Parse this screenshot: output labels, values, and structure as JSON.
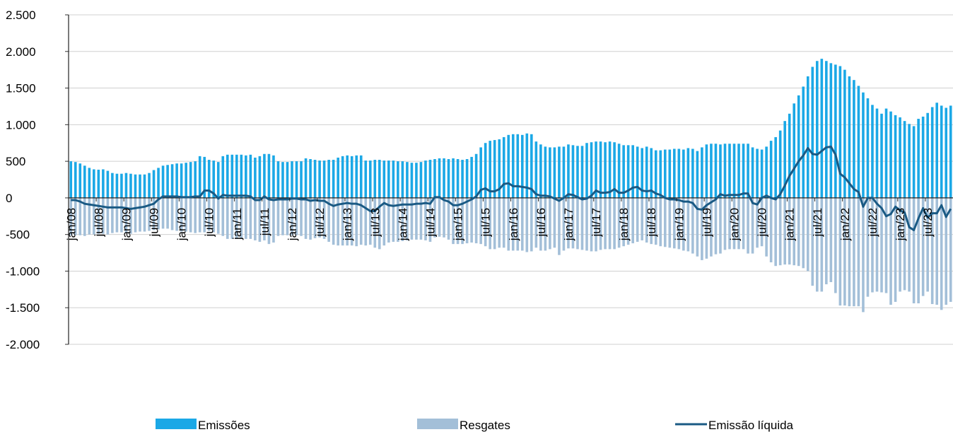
{
  "chart_data": {
    "type": "bar_line",
    "categories": [
      "jan/08",
      null,
      null,
      null,
      null,
      null,
      "jul/08",
      null,
      null,
      null,
      null,
      null,
      "jan/09",
      null,
      null,
      null,
      null,
      null,
      "jul/09",
      null,
      null,
      null,
      null,
      null,
      "jan/10",
      null,
      null,
      null,
      null,
      null,
      "jul/10",
      null,
      null,
      null,
      null,
      null,
      "jan/11",
      null,
      null,
      null,
      null,
      null,
      "jul/11",
      null,
      null,
      null,
      null,
      null,
      "jan/12",
      null,
      null,
      null,
      null,
      null,
      "jul/12",
      null,
      null,
      null,
      null,
      null,
      "jan/13",
      null,
      null,
      null,
      null,
      null,
      "jul/13",
      null,
      null,
      null,
      null,
      null,
      "jan/14",
      null,
      null,
      null,
      null,
      null,
      "jul/14",
      null,
      null,
      null,
      null,
      null,
      "jan/15",
      null,
      null,
      null,
      null,
      null,
      "jul/15",
      null,
      null,
      null,
      null,
      null,
      "jan/16",
      null,
      null,
      null,
      null,
      null,
      "jul/16",
      null,
      null,
      null,
      null,
      null,
      "jan/17",
      null,
      null,
      null,
      null,
      null,
      "jul/17",
      null,
      null,
      null,
      null,
      null,
      "jan/18",
      null,
      null,
      null,
      null,
      null,
      "jul/18",
      null,
      null,
      null,
      null,
      null,
      "jan/19",
      null,
      null,
      null,
      null,
      null,
      "jul/19",
      null,
      null,
      null,
      null,
      null,
      "jan/20",
      null,
      null,
      null,
      null,
      null,
      "jul/20",
      null,
      null,
      null,
      null,
      null,
      "jan/21",
      null,
      null,
      null,
      null,
      null,
      "jul/21",
      null,
      null,
      null,
      null,
      null,
      "jan/22",
      null,
      null,
      null,
      null,
      null,
      "jul/22",
      null,
      null,
      null,
      null,
      null,
      "jan/23",
      null,
      null,
      null,
      null,
      null,
      "jul/23",
      null,
      null,
      null,
      null,
      null
    ],
    "series": [
      {
        "name": "Emissões",
        "kind": "bar",
        "color": "#1ba8e6",
        "values": [
          500,
          490,
          470,
          440,
          410,
          390,
          385,
          390,
          370,
          340,
          330,
          330,
          340,
          330,
          320,
          320,
          320,
          340,
          380,
          410,
          440,
          450,
          460,
          470,
          470,
          480,
          490,
          500,
          570,
          560,
          520,
          510,
          490,
          570,
          590,
          590,
          590,
          590,
          580,
          590,
          550,
          570,
          600,
          600,
          580,
          500,
          490,
          490,
          500,
          500,
          500,
          540,
          530,
          520,
          510,
          510,
          520,
          520,
          550,
          570,
          580,
          570,
          580,
          580,
          510,
          510,
          520,
          520,
          510,
          510,
          510,
          500,
          500,
          490,
          480,
          480,
          490,
          510,
          520,
          530,
          540,
          540,
          530,
          540,
          530,
          520,
          530,
          560,
          600,
          690,
          750,
          780,
          790,
          800,
          830,
          860,
          870,
          870,
          860,
          880,
          870,
          770,
          730,
          700,
          690,
          690,
          700,
          700,
          730,
          720,
          710,
          710,
          750,
          760,
          770,
          770,
          760,
          770,
          760,
          740,
          720,
          720,
          720,
          700,
          680,
          700,
          680,
          650,
          650,
          660,
          660,
          670,
          670,
          660,
          680,
          670,
          640,
          690,
          730,
          740,
          740,
          730,
          740,
          740,
          740,
          740,
          740,
          740,
          690,
          670,
          660,
          700,
          780,
          830,
          920,
          1050,
          1150,
          1290,
          1400,
          1520,
          1660,
          1790,
          1870,
          1900,
          1870,
          1840,
          1820,
          1800,
          1750,
          1660,
          1610,
          1530,
          1440,
          1360,
          1270,
          1220,
          1150,
          1220,
          1180,
          1130,
          1100,
          1050,
          1010,
          980,
          1080,
          1110,
          1160,
          1240,
          1300,
          1260,
          1230,
          1260
        ]
      },
      {
        "name": "Resgates",
        "kind": "bar",
        "color": "#a3bfd8",
        "values": [
          -510,
          -510,
          -510,
          -520,
          -500,
          -500,
          -490,
          -490,
          -500,
          -480,
          -470,
          -470,
          -480,
          -490,
          -470,
          -460,
          -460,
          -450,
          -440,
          -430,
          -420,
          -420,
          -440,
          -450,
          -460,
          -460,
          -470,
          -480,
          -470,
          -470,
          -450,
          -470,
          -490,
          -520,
          -560,
          -560,
          -560,
          -560,
          -560,
          -560,
          -580,
          -600,
          -580,
          -630,
          -610,
          -520,
          -510,
          -510,
          -510,
          -510,
          -520,
          -560,
          -570,
          -550,
          -540,
          -560,
          -600,
          -640,
          -650,
          -650,
          -650,
          -650,
          -660,
          -640,
          -650,
          -640,
          -680,
          -700,
          -650,
          -610,
          -600,
          -600,
          -590,
          -580,
          -570,
          -570,
          -570,
          -580,
          -600,
          -540,
          -530,
          -540,
          -570,
          -630,
          -630,
          -630,
          -620,
          -610,
          -620,
          -630,
          -660,
          -700,
          -700,
          -680,
          -680,
          -720,
          -720,
          -720,
          -720,
          -740,
          -730,
          -680,
          -720,
          -720,
          -700,
          -680,
          -780,
          -720,
          -690,
          -690,
          -700,
          -710,
          -720,
          -730,
          -730,
          -710,
          -700,
          -700,
          -700,
          -680,
          -660,
          -640,
          -620,
          -600,
          -580,
          -610,
          -630,
          -640,
          -660,
          -670,
          -680,
          -690,
          -700,
          -720,
          -730,
          -760,
          -800,
          -850,
          -830,
          -800,
          -770,
          -760,
          -710,
          -700,
          -700,
          -700,
          -700,
          -760,
          -760,
          -680,
          -660,
          -800,
          -880,
          -930,
          -920,
          -910,
          -910,
          -920,
          -930,
          -960,
          -1000,
          -1200,
          -1280,
          -1280,
          -1180,
          -1150,
          -1300,
          -1470,
          -1470,
          -1480,
          -1480,
          -1480,
          -1560,
          -1350,
          -1290,
          -1280,
          -1290,
          -1300,
          -1460,
          -1420,
          -1280,
          -1260,
          -1280,
          -1440,
          -1440,
          -1340,
          -1280,
          -1450,
          -1460,
          -1530,
          -1460,
          -1420
        ]
      },
      {
        "name": "Emissão líquida",
        "kind": "line",
        "color": "#1a5a84",
        "values": [
          -30,
          -30,
          -50,
          -80,
          -90,
          -100,
          -110,
          -120,
          -130,
          -130,
          -130,
          -130,
          -140,
          -150,
          -140,
          -130,
          -120,
          -100,
          -80,
          -20,
          20,
          20,
          20,
          20,
          10,
          10,
          10,
          20,
          20,
          100,
          100,
          60,
          -10,
          40,
          30,
          30,
          30,
          30,
          30,
          20,
          -30,
          -30,
          20,
          -20,
          -30,
          -20,
          -20,
          -20,
          -10,
          -10,
          -20,
          -20,
          -40,
          -30,
          -40,
          -40,
          -80,
          -110,
          -90,
          -80,
          -70,
          -80,
          -80,
          -100,
          -140,
          -180,
          -180,
          -120,
          -70,
          -100,
          -110,
          -100,
          -90,
          -90,
          -90,
          -80,
          -80,
          -70,
          -80,
          10,
          10,
          -30,
          -50,
          -100,
          -100,
          -80,
          -50,
          -20,
          20,
          110,
          130,
          90,
          90,
          120,
          190,
          200,
          160,
          160,
          150,
          140,
          120,
          50,
          30,
          30,
          20,
          -10,
          -40,
          0,
          50,
          40,
          10,
          -20,
          -10,
          30,
          100,
          70,
          70,
          80,
          120,
          70,
          70,
          100,
          140,
          150,
          100,
          90,
          100,
          60,
          40,
          0,
          -20,
          -20,
          -30,
          -50,
          -50,
          -70,
          -150,
          -160,
          -100,
          -60,
          -20,
          50,
          30,
          40,
          40,
          40,
          60,
          60,
          -70,
          -90,
          0,
          30,
          0,
          -20,
          50,
          170,
          300,
          400,
          500,
          580,
          680,
          600,
          590,
          640,
          690,
          700,
          590,
          330,
          280,
          200,
          120,
          80,
          -120,
          0,
          0,
          -80,
          -140,
          -250,
          -220,
          -120,
          -170,
          -200,
          -400,
          -440,
          -280,
          -140,
          -270,
          -210,
          -210,
          -100,
          -260,
          -150
        ]
      }
    ],
    "ylim": [
      -2000,
      2500
    ],
    "yticks": [
      {
        "value": -2000,
        "label": "-2.000"
      },
      {
        "value": -1500,
        "label": "-1.500"
      },
      {
        "value": -1000,
        "label": "-1.000"
      },
      -500,
      0,
      500,
      {
        "value": 1000,
        "label": "1.000"
      },
      {
        "value": 1500,
        "label": "1.500"
      },
      {
        "value": 2000,
        "label": "2.000"
      },
      {
        "value": 2500,
        "label": "2.500"
      }
    ],
    "grid": true,
    "legend": "bottom"
  }
}
